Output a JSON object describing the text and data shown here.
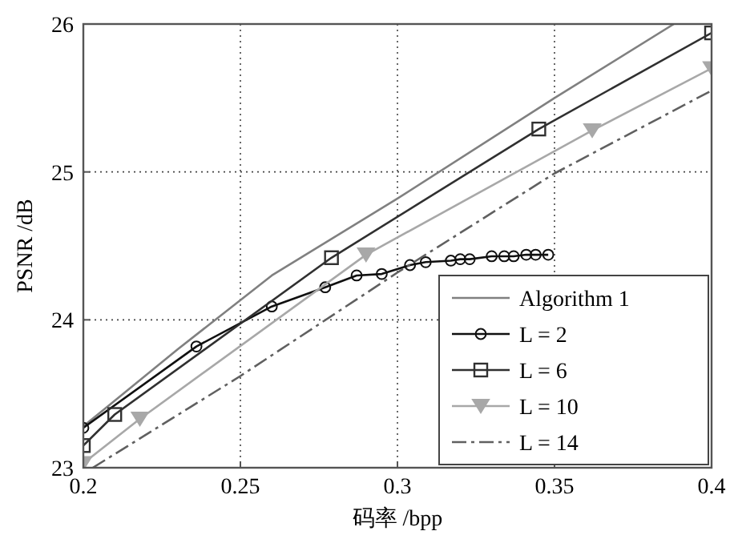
{
  "chart_data": {
    "type": "line",
    "xlabel": "码率 /bpp",
    "ylabel": "PSNR /dB",
    "xlim": [
      0.2,
      0.4
    ],
    "ylim": [
      23,
      26
    ],
    "xticks": [
      0.2,
      0.25,
      0.3,
      0.35,
      0.4
    ],
    "yticks": [
      23,
      24,
      25,
      26
    ],
    "grid": true,
    "legend": "bottom right",
    "series": [
      {
        "name": "Algorithm 1",
        "color": "#808080",
        "marker": "none",
        "line_style": "solid",
        "x": [
          0.2,
          0.23,
          0.26,
          0.3,
          0.35,
          0.388
        ],
        "values": [
          23.28,
          23.8,
          24.3,
          24.82,
          25.5,
          26
        ]
      },
      {
        "name": "L = 2",
        "color": "#101010",
        "marker": "circle",
        "line_style": "solid",
        "x": [
          0.2,
          0.236,
          0.26,
          0.277,
          0.287,
          0.295,
          0.304,
          0.309,
          0.317,
          0.32,
          0.323,
          0.33,
          0.334,
          0.337,
          0.341,
          0.344,
          0.348
        ],
        "values": [
          23.27,
          23.82,
          24.09,
          24.22,
          24.3,
          24.31,
          24.37,
          24.39,
          24.4,
          24.41,
          24.41,
          24.43,
          24.43,
          24.43,
          24.44,
          24.44,
          24.44
        ]
      },
      {
        "name": "L = 6",
        "color": "#303030",
        "marker": "square",
        "line_style": "solid",
        "x": [
          0.2,
          0.21,
          0.279,
          0.345,
          0.4
        ],
        "values": [
          23.15,
          23.36,
          24.42,
          25.29,
          25.94
        ]
      },
      {
        "name": "L = 10",
        "color": "#a8a8a8",
        "marker": "triangle",
        "line_style": "solid",
        "x": [
          0.2,
          0.218,
          0.29,
          0.362,
          0.4
        ],
        "values": [
          23.03,
          23.33,
          24.44,
          25.28,
          25.7
        ]
      },
      {
        "name": "L = 14",
        "color": "#606060",
        "marker": "none",
        "line_style": "dashdot",
        "x": [
          0.203,
          0.25,
          0.3,
          0.35,
          0.4
        ],
        "values": [
          23,
          23.62,
          24.32,
          24.99,
          25.55
        ]
      }
    ]
  }
}
